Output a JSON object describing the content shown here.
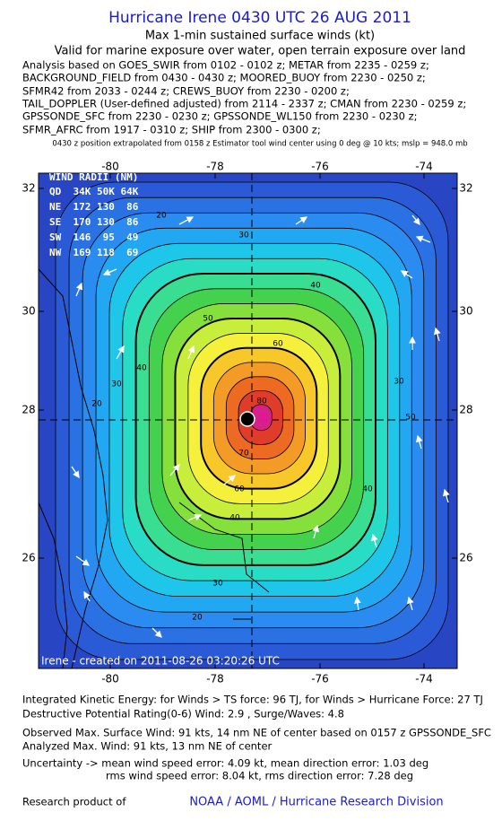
{
  "header": {
    "title": "Hurricane Irene 0430 UTC 26 AUG 2011",
    "subtitle": "Max 1-min sustained surface winds (kt)",
    "validity": "Valid for marine exposure over water, open terrain exposure over land",
    "analysis_lines": [
      "Analysis based on GOES_SWIR from 0102 - 0102 z; METAR from 2235 - 0259 z;",
      "BACKGROUND_FIELD from 0430 - 0430 z; MOORED_BUOY from 2230 - 0250 z;",
      "SFMR42 from 2033 - 0244 z; CREWS_BUOY from 2230 - 0200 z;",
      "TAIL_DOPPLER (User-defined adjusted) from 2114 - 2337 z; CMAN from 2230 - 0259 z;",
      "GPSSONDE_SFC from 2230 - 0230 z; GPSSONDE_WL150 from 2230 - 0230 z;",
      "SFMR_AFRC from 1917 - 0310 z; SHIP from 2300 - 0300 z;"
    ],
    "position_note": "0430 z position extrapolated from 0158 z Estimator tool wind center using 0 deg @ 10 kts; mslp = 948.0 mb"
  },
  "map": {
    "lon_labels": [
      -80,
      -78,
      -76,
      -74
    ],
    "lat_labels": [
      32,
      30,
      28,
      26
    ],
    "wind_radii": [
      "WIND RADII (NM)",
      "QD  34K 50K 64K",
      "NE  172 130  86",
      "SE  170 130  86",
      "SW  146  95  49",
      "NW  169 118  69"
    ],
    "contour_labels": [
      "20",
      "20",
      "20",
      "30",
      "30",
      "30",
      "30",
      "40",
      "40",
      "40",
      "40",
      "50",
      "50",
      "60",
      "60",
      "70",
      "80"
    ],
    "credit": "Irene - created on 2011-08-26 03:20:26 UTC"
  },
  "footer": {
    "lines": [
      "Integrated Kinetic Energy:  for Winds > TS force: 96 TJ,  for Winds > Hurricane Force: 27 TJ",
      "Destructive Potential Rating(0-6)   Wind: 2.9 , Surge/Waves: 4.8",
      "Observed Max. Surface Wind: 91 kts, 14 nm NE of center based on 0157 z GPSSONDE_SFC",
      "Analyzed Max. Wind: 91 kts, 13 nm NE of center",
      "Uncertainty -> mean wind speed error: 4.09 kt,   mean direction error: 1.03 deg",
      "rms wind speed error: 8.04 kt,   rms direction error: 7.28 deg"
    ],
    "research": "Research product of",
    "org": "NOAA / AOML / Hurricane Research Division"
  }
}
